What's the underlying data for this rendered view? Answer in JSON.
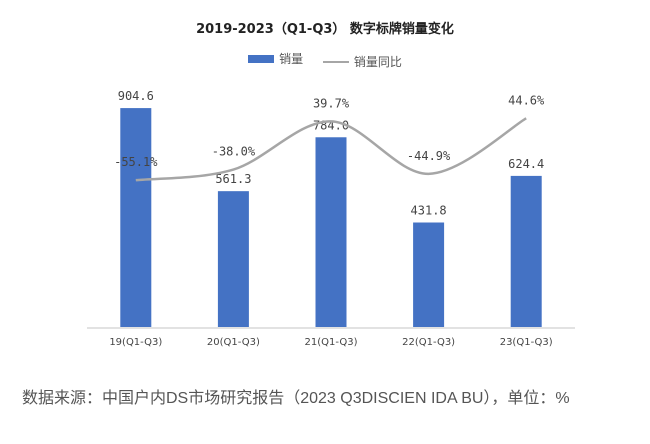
{
  "chart_data": {
    "type": "bar+line",
    "title": "2019-2023（Q1-Q3） 数字标牌销量变化",
    "categories": [
      "19(Q1-Q3)",
      "20(Q1-Q3)",
      "21(Q1-Q3)",
      "22(Q1-Q3)",
      "23(Q1-Q3)"
    ],
    "series": [
      {
        "name": "销量",
        "type": "bar",
        "color": "#4472C4",
        "values": [
          904.6,
          561.3,
          784.0,
          431.8,
          624.4
        ],
        "labels": [
          "904.6",
          "561.3",
          "784.0",
          "431.8",
          "624.4"
        ]
      },
      {
        "name": "销量同比",
        "type": "line",
        "smooth": true,
        "color": "#A6A6A6",
        "values": [
          -55.1,
          -38.0,
          39.7,
          -44.9,
          44.6
        ],
        "labels": [
          "-55.1%",
          "-38.0%",
          "39.7%",
          "-44.9%",
          "44.6%"
        ]
      }
    ],
    "legend_position": "top",
    "grid": false
  },
  "source": "数据来源：中国户内DS市场研究报告（2023 Q3DISCIEN IDA BU），单位：%"
}
